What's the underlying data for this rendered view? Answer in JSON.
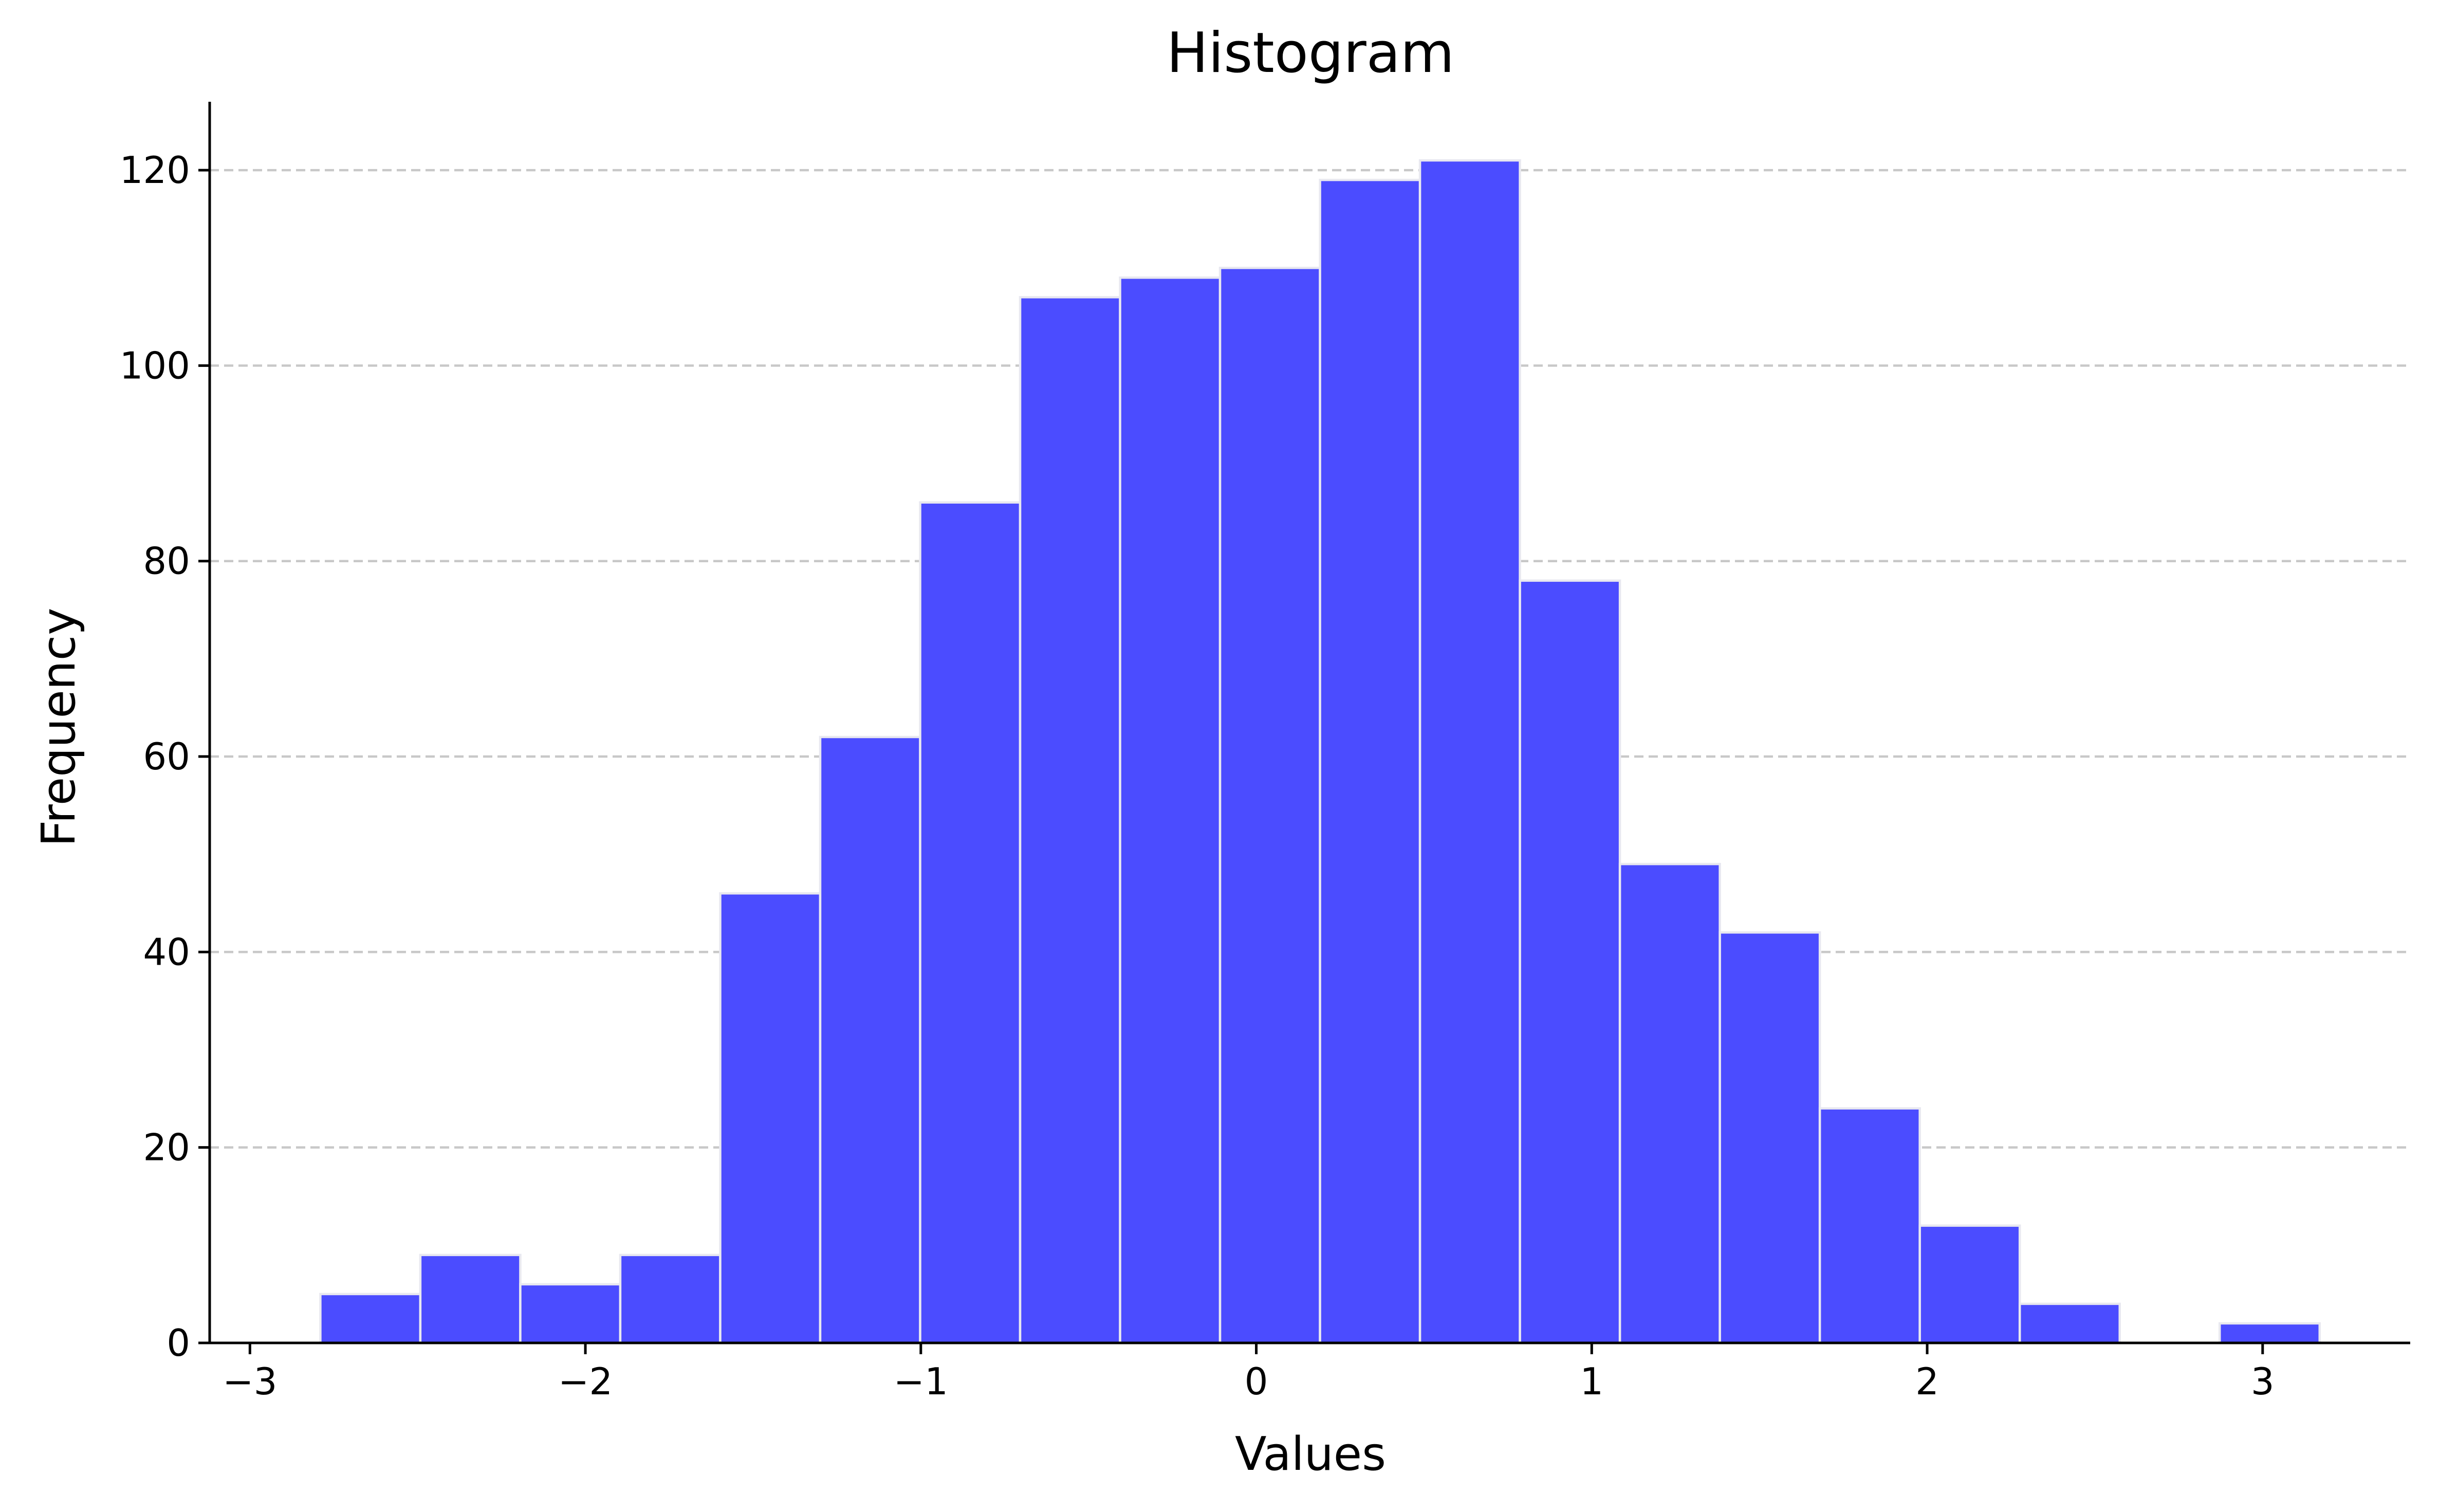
{
  "chart_data": {
    "type": "bar",
    "title": "Histogram",
    "xlabel": "Values",
    "ylabel": "Frequency",
    "xlim": [
      -3.12,
      3.44
    ],
    "ylim": [
      0,
      127
    ],
    "x_ticks": [
      -3,
      -2,
      -1,
      0,
      1,
      2,
      3
    ],
    "x_tick_labels": [
      "−3",
      "−2",
      "−1",
      "0",
      "1",
      "2",
      "3"
    ],
    "y_ticks": [
      0,
      20,
      40,
      60,
      80,
      100,
      120
    ],
    "y_tick_labels": [
      "0",
      "20",
      "40",
      "60",
      "80",
      "100",
      "120"
    ],
    "bin_start": -2.79,
    "bin_width": 0.298,
    "values": [
      5,
      9,
      6,
      9,
      46,
      62,
      86,
      107,
      109,
      110,
      119,
      121,
      78,
      49,
      42,
      24,
      12,
      4,
      0,
      2
    ],
    "bar_color": "#4b4cff",
    "grid": "horizontal-dashed",
    "legend": "none"
  }
}
